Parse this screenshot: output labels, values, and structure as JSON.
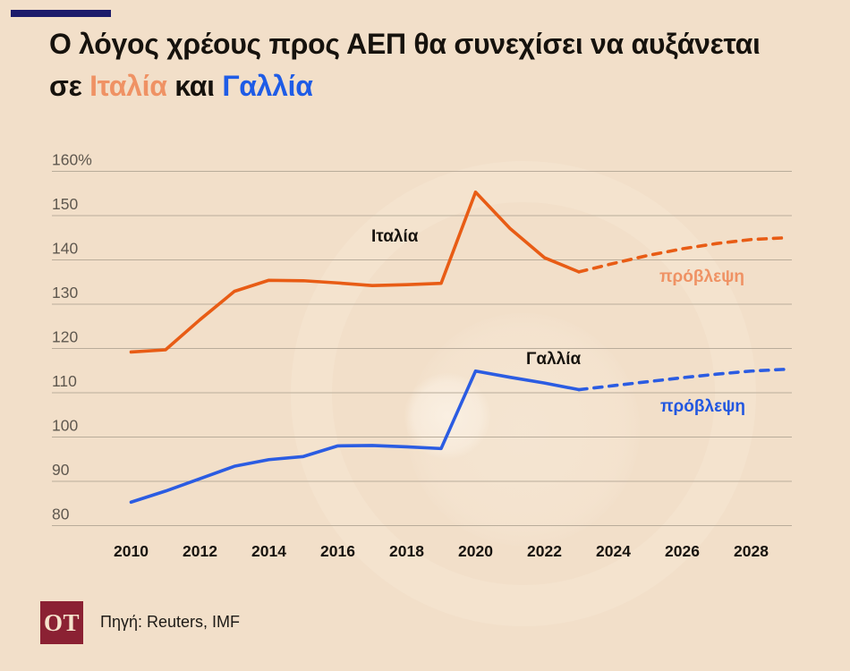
{
  "colors": {
    "background": "#f2dfc9",
    "accent_bar": "#1d1c6b",
    "title_text": "#16120d",
    "title_italy": "#ef9264",
    "title_france": "#1f5ce6",
    "italy_line": "#e85c15",
    "france_line": "#2b5ce2",
    "forecast_label_italy": "#ef9264",
    "forecast_label_france": "#2257e0",
    "gridline": "#b3a796",
    "ytick_text": "#5f584f",
    "xtick_text": "#17130e",
    "logo_bg": "#8b2133",
    "logo_text": "#f6e3cd"
  },
  "header": {
    "line1": "Ο λόγος χρέους προς ΑΕΠ θα συνεχίσει να αυξάνεται",
    "prefix2": "σε",
    "italy": "Ιταλία",
    "and": "και",
    "france": "Γαλλία"
  },
  "chart_labels": {
    "italy": "Ιταλία",
    "france": "Γαλλία",
    "forecast_italy": "πρόβλεψη",
    "forecast_france": "πρόβλεψη"
  },
  "chart_data": {
    "type": "line",
    "title": "Ο λόγος χρέους προς ΑΕΠ θα συνεχίσει να αυξάνεται σε Ιταλία και Γαλλία",
    "xlabel": "",
    "ylabel": "",
    "ylim": [
      80,
      160
    ],
    "xlim": [
      2010,
      2029
    ],
    "grid": true,
    "legend_position": "inline-annotations",
    "yticks": [
      {
        "value": 160,
        "label": "160%"
      },
      {
        "value": 150,
        "label": "150"
      },
      {
        "value": 140,
        "label": "140"
      },
      {
        "value": 130,
        "label": "130"
      },
      {
        "value": 120,
        "label": "120"
      },
      {
        "value": 110,
        "label": "110"
      },
      {
        "value": 100,
        "label": "100"
      },
      {
        "value": 90,
        "label": "90"
      },
      {
        "value": 80,
        "label": "80"
      }
    ],
    "xticks": [
      2010,
      2012,
      2014,
      2016,
      2018,
      2020,
      2022,
      2024,
      2026,
      2028
    ],
    "series": [
      {
        "name": "Ιταλία",
        "color": "#e85c15",
        "style": "solid",
        "years": [
          2010,
          2011,
          2012,
          2013,
          2014,
          2015,
          2016,
          2017,
          2018,
          2019,
          2020,
          2021,
          2022,
          2023
        ],
        "values": [
          119.2,
          119.7,
          126.5,
          132.9,
          135.4,
          135.3,
          134.8,
          134.2,
          134.4,
          134.7,
          155.3,
          147.1,
          140.5,
          137.3
        ],
        "forecast_style": "dashed",
        "forecast_years": [
          2023,
          2024,
          2025,
          2026,
          2027,
          2028,
          2029
        ],
        "forecast_values": [
          137.3,
          139.2,
          141.0,
          142.5,
          143.7,
          144.6,
          145.0
        ],
        "forecast_label": "πρόβλεψη"
      },
      {
        "name": "Γαλλία",
        "color": "#2b5ce2",
        "style": "solid",
        "years": [
          2010,
          2011,
          2012,
          2013,
          2014,
          2015,
          2016,
          2017,
          2018,
          2019,
          2020,
          2021,
          2022,
          2023
        ],
        "values": [
          85.3,
          87.8,
          90.6,
          93.4,
          94.9,
          95.6,
          98.0,
          98.1,
          97.8,
          97.4,
          114.9,
          113.5,
          112.2,
          110.7
        ],
        "forecast_style": "dashed",
        "forecast_years": [
          2023,
          2024,
          2025,
          2026,
          2027,
          2028,
          2029
        ],
        "forecast_values": [
          110.7,
          111.6,
          112.5,
          113.4,
          114.2,
          114.9,
          115.3
        ],
        "forecast_label": "πρόβλεψη"
      }
    ]
  },
  "footer": {
    "logo": "OT",
    "source": "Πηγή: Reuters, IMF"
  }
}
